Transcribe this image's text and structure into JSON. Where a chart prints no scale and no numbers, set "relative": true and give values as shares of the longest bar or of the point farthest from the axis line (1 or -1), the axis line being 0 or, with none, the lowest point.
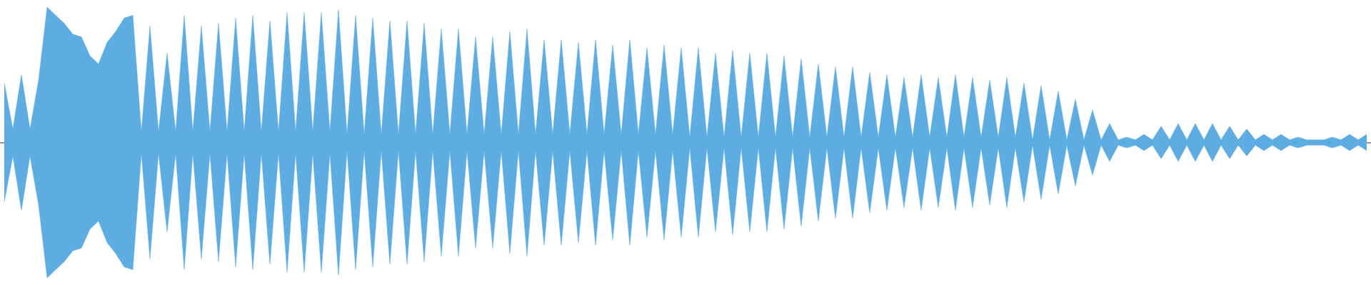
{
  "chart_data": {
    "type": "area",
    "relative": true,
    "categories": [
      null,
      null,
      null,
      null,
      null,
      null,
      null,
      null,
      null,
      null,
      null,
      null,
      null,
      null,
      null,
      null,
      null,
      null,
      null,
      null,
      null,
      null,
      null,
      null,
      null,
      null,
      null,
      null,
      null,
      null,
      null,
      null,
      null,
      null,
      null,
      null,
      null,
      null,
      null,
      null,
      null,
      null,
      null,
      null,
      null,
      null,
      null,
      null,
      null,
      null,
      null,
      null,
      null,
      null,
      null,
      null,
      null,
      null,
      null,
      null,
      null,
      null,
      null,
      null,
      null,
      null,
      null,
      null,
      null,
      null,
      null,
      null,
      null,
      null,
      null,
      null,
      null,
      null,
      null,
      null,
      null,
      null,
      null,
      null,
      null,
      null,
      null,
      null,
      null,
      null,
      null,
      null,
      null,
      null,
      null,
      null,
      null,
      null,
      null,
      null,
      null,
      null,
      null,
      null,
      null,
      null,
      null,
      null,
      null,
      null,
      null,
      null,
      null,
      null,
      null,
      null,
      null,
      null,
      null,
      null,
      null,
      null,
      null,
      null,
      null,
      null,
      null,
      null,
      null,
      null,
      null,
      null,
      null,
      null,
      null,
      null,
      null,
      null,
      null,
      null,
      null,
      null,
      null,
      null,
      null,
      null,
      null,
      null,
      null,
      null,
      null,
      null,
      null,
      null,
      null,
      null,
      null,
      null,
      null,
      null
    ],
    "series": [
      {
        "color": "#5dade2",
        "values": [
          0.44,
          0.1,
          0.5,
          0.1,
          0.46,
          1.0,
          0.94,
          0.88,
          0.8,
          0.78,
          0.64,
          0.58,
          0.74,
          0.82,
          0.92,
          0.94,
          0.08,
          0.86,
          0.08,
          0.66,
          0.08,
          0.94,
          0.08,
          0.86,
          0.08,
          0.88,
          0.08,
          0.92,
          0.08,
          0.94,
          0.08,
          0.9,
          0.08,
          0.96,
          0.08,
          0.96,
          0.08,
          0.96,
          0.08,
          0.98,
          0.06,
          0.94,
          0.06,
          0.92,
          0.06,
          0.9,
          0.06,
          0.9,
          0.06,
          0.88,
          0.06,
          0.84,
          0.06,
          0.84,
          0.06,
          0.78,
          0.06,
          0.78,
          0.06,
          0.82,
          0.06,
          0.84,
          0.06,
          0.76,
          0.06,
          0.76,
          0.06,
          0.74,
          0.06,
          0.76,
          0.06,
          0.72,
          0.06,
          0.76,
          0.06,
          0.7,
          0.06,
          0.72,
          0.06,
          0.7,
          0.04,
          0.7,
          0.04,
          0.66,
          0.04,
          0.68,
          0.04,
          0.66,
          0.04,
          0.66,
          0.04,
          0.64,
          0.04,
          0.62,
          0.04,
          0.58,
          0.04,
          0.56,
          0.04,
          0.56,
          0.04,
          0.52,
          0.04,
          0.5,
          0.04,
          0.48,
          0.04,
          0.5,
          0.04,
          0.48,
          0.04,
          0.5,
          0.04,
          0.48,
          0.04,
          0.46,
          0.04,
          0.48,
          0.04,
          0.44,
          0.02,
          0.42,
          0.02,
          0.38,
          0.02,
          0.32,
          0.02,
          0.24,
          0.02,
          0.14,
          0.02,
          0.04,
          0.02,
          0.06,
          0.02,
          0.12,
          0.02,
          0.14,
          0.02,
          0.14,
          0.02,
          0.14,
          0.02,
          0.12,
          0.02,
          0.1,
          0.02,
          0.06,
          0.02,
          0.06,
          0.02,
          0.04,
          0.02,
          0.02,
          0.02,
          0.04,
          0.02,
          0.06,
          0.02,
          0.06
        ]
      },
      {
        "color": "#5dade2",
        "values": [
          -0.44,
          -0.1,
          -0.5,
          -0.1,
          -0.46,
          -1.0,
          -0.94,
          -0.88,
          -0.8,
          -0.78,
          -0.64,
          -0.58,
          -0.74,
          -0.82,
          -0.92,
          -0.94,
          -0.08,
          -0.86,
          -0.08,
          -0.66,
          -0.08,
          -0.94,
          -0.08,
          -0.86,
          -0.08,
          -0.88,
          -0.08,
          -0.92,
          -0.08,
          -0.94,
          -0.08,
          -0.9,
          -0.08,
          -0.96,
          -0.08,
          -0.96,
          -0.08,
          -0.96,
          -0.08,
          -0.98,
          -0.06,
          -0.94,
          -0.06,
          -0.92,
          -0.06,
          -0.9,
          -0.06,
          -0.9,
          -0.06,
          -0.88,
          -0.06,
          -0.84,
          -0.06,
          -0.84,
          -0.06,
          -0.78,
          -0.06,
          -0.78,
          -0.06,
          -0.82,
          -0.06,
          -0.84,
          -0.06,
          -0.76,
          -0.06,
          -0.76,
          -0.06,
          -0.74,
          -0.06,
          -0.76,
          -0.06,
          -0.72,
          -0.06,
          -0.76,
          -0.06,
          -0.7,
          -0.06,
          -0.72,
          -0.06,
          -0.7,
          -0.04,
          -0.7,
          -0.04,
          -0.66,
          -0.04,
          -0.68,
          -0.04,
          -0.66,
          -0.04,
          -0.66,
          -0.04,
          -0.64,
          -0.04,
          -0.62,
          -0.04,
          -0.58,
          -0.04,
          -0.56,
          -0.04,
          -0.56,
          -0.04,
          -0.52,
          -0.04,
          -0.5,
          -0.04,
          -0.48,
          -0.04,
          -0.5,
          -0.04,
          -0.48,
          -0.04,
          -0.5,
          -0.04,
          -0.48,
          -0.04,
          -0.46,
          -0.04,
          -0.48,
          -0.04,
          -0.44,
          -0.02,
          -0.42,
          -0.02,
          -0.38,
          -0.02,
          -0.32,
          -0.02,
          -0.24,
          -0.02,
          -0.14,
          -0.02,
          -0.04,
          -0.02,
          -0.06,
          -0.02,
          -0.12,
          -0.02,
          -0.14,
          -0.02,
          -0.14,
          -0.02,
          -0.14,
          -0.02,
          -0.12,
          -0.02,
          -0.1,
          -0.02,
          -0.06,
          -0.02,
          -0.06,
          -0.02,
          -0.04,
          -0.02,
          -0.02,
          -0.02,
          -0.04,
          -0.02,
          -0.06,
          -0.02,
          -0.06
        ]
      }
    ]
  }
}
